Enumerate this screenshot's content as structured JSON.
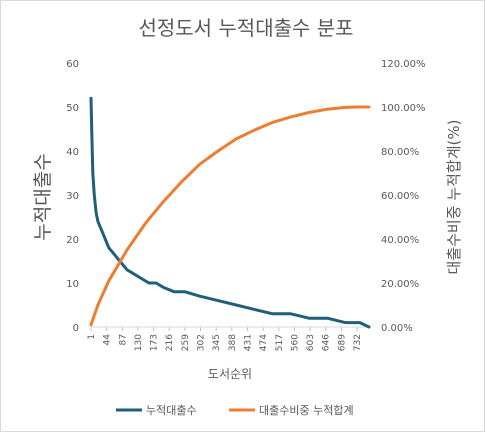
{
  "chart_data": {
    "type": "line",
    "title": "선정도서 누적대출수 분포",
    "xlabel": "도서순위",
    "ylabel": "누적대출수",
    "y2label": "대출수비중 누적합계(%)",
    "ylim": [
      0,
      60
    ],
    "y2lim": [
      0,
      1.2
    ],
    "y_ticks": [
      "0",
      "10",
      "20",
      "30",
      "40",
      "50",
      "60"
    ],
    "y2_ticks": [
      "0.00%",
      "20.00%",
      "40.00%",
      "60.00%",
      "80.00%",
      "100.00%",
      "120.00%"
    ],
    "x_ticks": [
      "1",
      "44",
      "87",
      "130",
      "173",
      "216",
      "259",
      "302",
      "345",
      "388",
      "431",
      "474",
      "517",
      "560",
      "603",
      "646",
      "689",
      "732"
    ],
    "x_range": [
      1,
      765
    ],
    "legend_position": "bottom",
    "grid": false,
    "series": [
      {
        "name": "누적대출수",
        "axis": "left",
        "color": "#1f5f7a",
        "x": [
          1,
          3,
          6,
          10,
          15,
          20,
          25,
          30,
          40,
          50,
          60,
          70,
          80,
          90,
          100,
          120,
          140,
          160,
          180,
          200,
          230,
          260,
          300,
          350,
          400,
          450,
          500,
          550,
          600,
          650,
          700,
          740,
          765
        ],
        "y": [
          52,
          45,
          35,
          30,
          26,
          24,
          23,
          22,
          20,
          18,
          17,
          16,
          15,
          14,
          13,
          12,
          11,
          10,
          10,
          9,
          8,
          8,
          7,
          6,
          5,
          4,
          3,
          3,
          2,
          2,
          1,
          1,
          0
        ]
      },
      {
        "name": "대출수비중 누적합계",
        "axis": "right",
        "color": "#ed7d31",
        "x": [
          1,
          20,
          50,
          100,
          150,
          200,
          250,
          300,
          350,
          400,
          450,
          500,
          550,
          600,
          650,
          700,
          730,
          765
        ],
        "y": [
          0.01,
          0.1,
          0.21,
          0.35,
          0.47,
          0.57,
          0.66,
          0.74,
          0.8,
          0.855,
          0.895,
          0.93,
          0.955,
          0.975,
          0.99,
          0.998,
          1.0,
          1.0
        ]
      }
    ]
  }
}
